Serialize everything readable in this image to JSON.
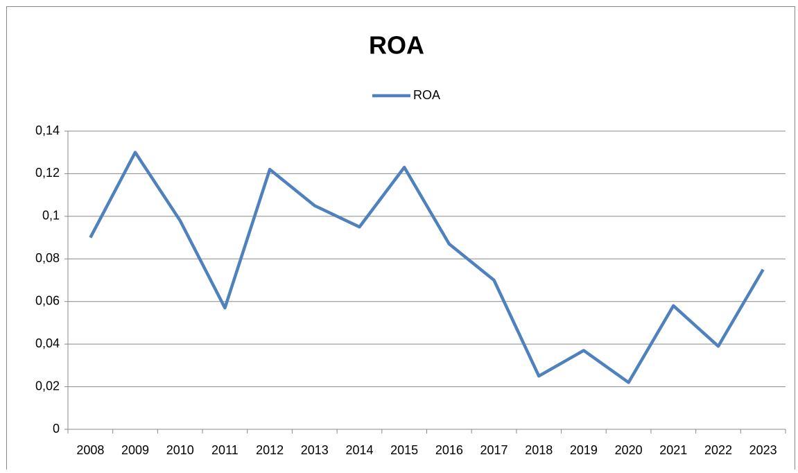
{
  "chart_data": {
    "type": "line",
    "title": "ROA",
    "categories": [
      "2008",
      "2009",
      "2010",
      "2011",
      "2012",
      "2013",
      "2014",
      "2015",
      "2016",
      "2017",
      "2018",
      "2019",
      "2020",
      "2021",
      "2022",
      "2023"
    ],
    "series": [
      {
        "name": "ROA",
        "color": "#4f81bd",
        "values": [
          0.09,
          0.13,
          0.098,
          0.057,
          0.122,
          0.105,
          0.095,
          0.123,
          0.087,
          0.07,
          0.025,
          0.037,
          0.022,
          0.058,
          0.039,
          0.075
        ]
      }
    ],
    "ylim": [
      0,
      0.14
    ],
    "yticks": [
      0,
      {
        "value": 0.02,
        "label": "0,02"
      },
      {
        "value": 0.04,
        "label": "0,04"
      },
      {
        "value": 0.06,
        "label": "0,06"
      },
      {
        "value": 0.08,
        "label": "0,08"
      },
      {
        "value": 0.1,
        "label": "0,1"
      },
      {
        "value": 0.12,
        "label": "0,12"
      },
      {
        "value": 0.14,
        "label": "0,14"
      }
    ],
    "grid": true,
    "legend": "top"
  }
}
